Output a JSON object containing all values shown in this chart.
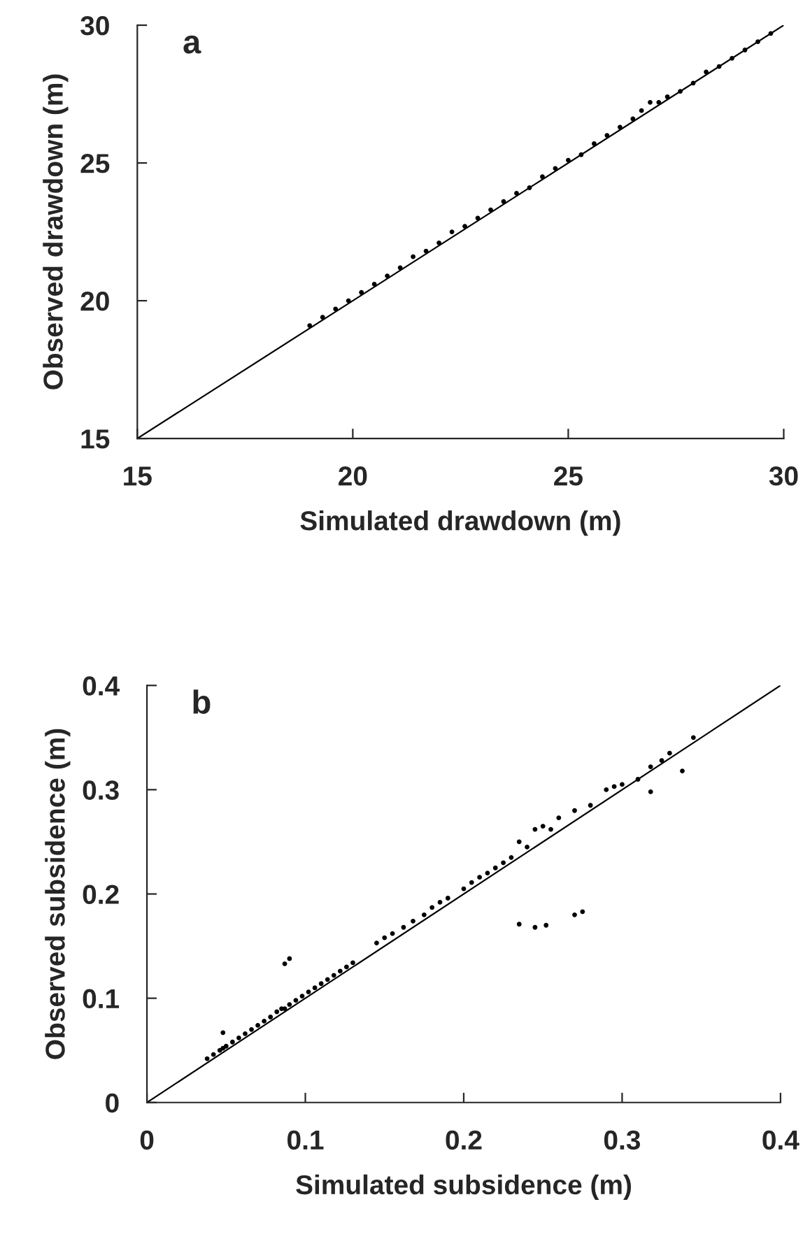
{
  "chart_data": [
    {
      "type": "scatter",
      "title": "a",
      "xlabel": "Simulated drawdown (m)",
      "ylabel": "Observed drawdown (m)",
      "xlim": [
        15,
        30
      ],
      "ylim": [
        15,
        30
      ],
      "xticks": [
        15,
        20,
        25,
        30
      ],
      "yticks": [
        15,
        20,
        25,
        30
      ],
      "grid": false,
      "series": [
        {
          "color": "#000000",
          "marker": "circle",
          "x": [
            19.0,
            19.3,
            19.6,
            19.9,
            20.2,
            20.5,
            20.8,
            21.1,
            21.4,
            21.7,
            22.0,
            22.3,
            22.6,
            22.9,
            23.2,
            23.5,
            23.8,
            24.1,
            24.4,
            24.7,
            25.0,
            25.3,
            25.6,
            25.9,
            26.2,
            26.5,
            26.7,
            26.9,
            27.1,
            27.3,
            27.6,
            27.9,
            28.2,
            28.5,
            28.8,
            29.1,
            29.4,
            29.7
          ],
          "values": [
            19.1,
            19.4,
            19.7,
            20.0,
            20.3,
            20.6,
            20.9,
            21.2,
            21.6,
            21.8,
            22.1,
            22.5,
            22.7,
            23.0,
            23.3,
            23.6,
            23.9,
            24.1,
            24.5,
            24.8,
            25.1,
            25.3,
            25.7,
            26.0,
            26.3,
            26.6,
            26.9,
            27.2,
            27.2,
            27.4,
            27.6,
            27.9,
            28.3,
            28.5,
            28.8,
            29.1,
            29.4,
            29.7
          ]
        },
        {
          "type": "line",
          "color": "#000000",
          "marker": "none",
          "x": [
            15,
            30
          ],
          "values": [
            15,
            30
          ]
        }
      ]
    },
    {
      "type": "scatter",
      "title": "b",
      "xlabel": "Simulated subsidence (m)",
      "ylabel": "Observed subsidence (m)",
      "xlim": [
        0,
        0.4
      ],
      "ylim": [
        0,
        0.4
      ],
      "xticks": [
        0,
        0.1,
        0.2,
        0.3,
        0.4
      ],
      "yticks": [
        0,
        0.1,
        0.2,
        0.3,
        0.4
      ],
      "grid": false,
      "series": [
        {
          "color": "#000000",
          "marker": "circle",
          "x": [
            0.038,
            0.042,
            0.046,
            0.048,
            0.05,
            0.054,
            0.058,
            0.062,
            0.066,
            0.07,
            0.074,
            0.078,
            0.082,
            0.085,
            0.087,
            0.09,
            0.094,
            0.098,
            0.102,
            0.106,
            0.11,
            0.114,
            0.118,
            0.122,
            0.126,
            0.13,
            0.145,
            0.15,
            0.155,
            0.162,
            0.168,
            0.175,
            0.18,
            0.185,
            0.19,
            0.2,
            0.205,
            0.21,
            0.215,
            0.22,
            0.225,
            0.23,
            0.235,
            0.24,
            0.245,
            0.25,
            0.255,
            0.26,
            0.27,
            0.28,
            0.29,
            0.295,
            0.3,
            0.31,
            0.318,
            0.325,
            0.33,
            0.345,
            0.048,
            0.087,
            0.09,
            0.235,
            0.245,
            0.252,
            0.27,
            0.275,
            0.318,
            0.338
          ],
          "values": [
            0.042,
            0.046,
            0.05,
            0.052,
            0.054,
            0.058,
            0.062,
            0.066,
            0.07,
            0.074,
            0.078,
            0.082,
            0.087,
            0.09,
            0.09,
            0.094,
            0.098,
            0.102,
            0.106,
            0.11,
            0.114,
            0.118,
            0.122,
            0.126,
            0.13,
            0.134,
            0.153,
            0.158,
            0.162,
            0.168,
            0.174,
            0.18,
            0.187,
            0.192,
            0.196,
            0.205,
            0.211,
            0.216,
            0.22,
            0.225,
            0.23,
            0.235,
            0.25,
            0.245,
            0.262,
            0.265,
            0.262,
            0.273,
            0.28,
            0.285,
            0.3,
            0.303,
            0.305,
            0.31,
            0.322,
            0.328,
            0.335,
            0.35,
            0.067,
            0.133,
            0.138,
            0.171,
            0.168,
            0.17,
            0.18,
            0.183,
            0.298,
            0.318
          ]
        },
        {
          "type": "line",
          "color": "#000000",
          "marker": "none",
          "x": [
            0,
            0.4
          ],
          "values": [
            0,
            0.4
          ]
        }
      ]
    }
  ]
}
